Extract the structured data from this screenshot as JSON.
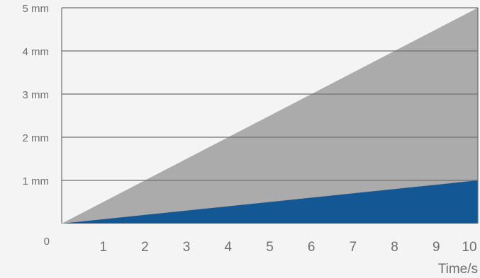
{
  "chart_data": {
    "type": "area",
    "title": "",
    "xlabel": "Time/s",
    "ylabel": "",
    "x": [
      0,
      10
    ],
    "xlim": [
      0,
      10
    ],
    "ylim": [
      0,
      5
    ],
    "x_ticks": [
      "1",
      "2",
      "3",
      "4",
      "5",
      "6",
      "7",
      "8",
      "9",
      "10"
    ],
    "y_ticks": [
      "0",
      "1 mm",
      "2 mm",
      "3 mm",
      "4 mm",
      "5 mm"
    ],
    "series": [
      {
        "values": [
          0,
          5
        ],
        "color": "#ababab"
      },
      {
        "values": [
          0,
          1
        ],
        "color": "#135894"
      }
    ],
    "grid": true,
    "legend": "none"
  },
  "colors": {
    "background": "#f4f4f4",
    "grid": "#6f6f6f",
    "text": "#6f6f6f"
  }
}
